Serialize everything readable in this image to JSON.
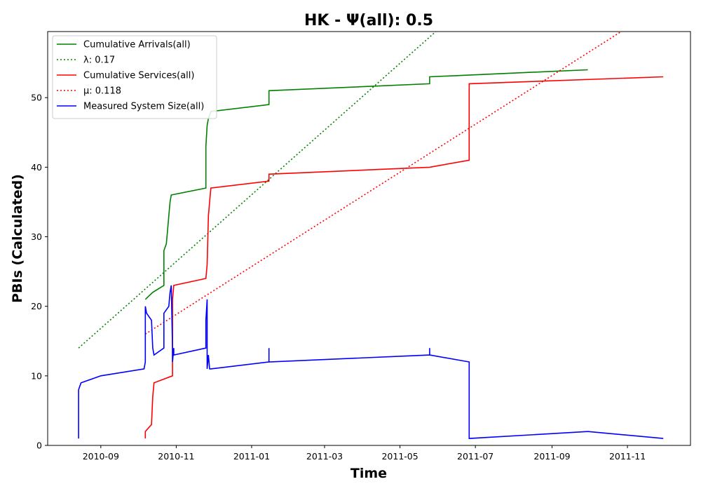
{
  "chart_data": {
    "type": "line",
    "title": "HK -  Ψ(all): 0.5",
    "xlabel": "Time",
    "ylabel": "PBIs (Calculated)",
    "xlim": [
      "2010-07-20",
      "2011-12-22"
    ],
    "ylim": [
      0,
      59.5
    ],
    "xticks": [
      "2010-09",
      "2010-11",
      "2011-01",
      "2011-03",
      "2011-05",
      "2011-07",
      "2011-09",
      "2011-11"
    ],
    "yticks": [
      0,
      10,
      20,
      30,
      40,
      50
    ],
    "grid": false,
    "legend_position": "top-left",
    "series": [
      {
        "name": "Cumulative Arrivals(all)",
        "color": "#008000",
        "style": "solid",
        "points": [
          [
            "2010-10-07",
            21
          ],
          [
            "2010-10-13",
            22
          ],
          [
            "2010-10-22",
            23
          ],
          [
            "2010-10-22",
            28
          ],
          [
            "2010-10-24",
            29
          ],
          [
            "2010-10-25",
            31
          ],
          [
            "2010-10-26",
            33
          ],
          [
            "2010-10-27",
            35
          ],
          [
            "2010-10-28",
            36
          ],
          [
            "2010-11-25",
            37
          ],
          [
            "2010-11-25",
            43
          ],
          [
            "2010-11-26",
            46
          ],
          [
            "2010-11-27",
            47
          ],
          [
            "2010-11-29",
            48
          ],
          [
            "2011-01-15",
            49
          ],
          [
            "2011-01-15",
            51
          ],
          [
            "2011-05-25",
            52
          ],
          [
            "2011-05-25",
            53
          ],
          [
            "2011-09-30",
            54
          ]
        ]
      },
      {
        "name": "λ: 0.17",
        "color": "#008000",
        "style": "dotted",
        "points": [
          [
            "2010-08-14",
            14
          ],
          [
            "2011-05-30",
            59.5
          ]
        ]
      },
      {
        "name": "Cumulative Services(all)",
        "color": "#ff0000",
        "style": "solid",
        "points": [
          [
            "2010-10-07",
            1
          ],
          [
            "2010-10-07",
            2
          ],
          [
            "2010-10-12",
            3
          ],
          [
            "2010-10-13",
            7
          ],
          [
            "2010-10-14",
            9
          ],
          [
            "2010-10-29",
            10
          ],
          [
            "2010-10-29",
            21
          ],
          [
            "2010-10-30",
            23
          ],
          [
            "2010-11-25",
            24
          ],
          [
            "2010-11-26",
            26
          ],
          [
            "2010-11-27",
            33
          ],
          [
            "2010-11-28",
            35
          ],
          [
            "2010-11-29",
            37
          ],
          [
            "2011-01-15",
            38
          ],
          [
            "2011-01-15",
            39
          ],
          [
            "2011-05-25",
            40
          ],
          [
            "2011-06-26",
            41
          ],
          [
            "2011-06-26",
            52
          ],
          [
            "2011-11-30",
            53
          ]
        ]
      },
      {
        "name": "μ: 0.118",
        "color": "#ff0000",
        "style": "dotted",
        "points": [
          [
            "2010-10-07",
            16
          ],
          [
            "2011-10-27",
            59.5
          ]
        ]
      },
      {
        "name": "Measured System Size(all)",
        "color": "#0000ff",
        "style": "solid",
        "points": [
          [
            "2010-08-14",
            1
          ],
          [
            "2010-08-14",
            8
          ],
          [
            "2010-08-15",
            8.5
          ],
          [
            "2010-08-16",
            9
          ],
          [
            "2010-09-01",
            10
          ],
          [
            "2010-10-06",
            11
          ],
          [
            "2010-10-07",
            12
          ],
          [
            "2010-10-07",
            20
          ],
          [
            "2010-10-08",
            19
          ],
          [
            "2010-10-12",
            18
          ],
          [
            "2010-10-13",
            14
          ],
          [
            "2010-10-14",
            13
          ],
          [
            "2010-10-22",
            14
          ],
          [
            "2010-10-22",
            19
          ],
          [
            "2010-10-26",
            20
          ],
          [
            "2010-10-27",
            22
          ],
          [
            "2010-10-28",
            23
          ],
          [
            "2010-10-29",
            14
          ],
          [
            "2010-10-29",
            12
          ],
          [
            "2010-10-30",
            14
          ],
          [
            "2010-10-30",
            13
          ],
          [
            "2010-11-25",
            14
          ],
          [
            "2010-11-25",
            18
          ],
          [
            "2010-11-26",
            21
          ],
          [
            "2010-11-26",
            11
          ],
          [
            "2010-11-27",
            13
          ],
          [
            "2010-11-28",
            11
          ],
          [
            "2010-11-29",
            11
          ],
          [
            "2011-01-15",
            12
          ],
          [
            "2011-01-15",
            14
          ],
          [
            "2011-01-15",
            12
          ],
          [
            "2011-05-25",
            13
          ],
          [
            "2011-05-25",
            14
          ],
          [
            "2011-05-25",
            13
          ],
          [
            "2011-06-26",
            12
          ],
          [
            "2011-06-26",
            1
          ],
          [
            "2011-09-30",
            2
          ],
          [
            "2011-11-30",
            1
          ]
        ]
      }
    ]
  }
}
